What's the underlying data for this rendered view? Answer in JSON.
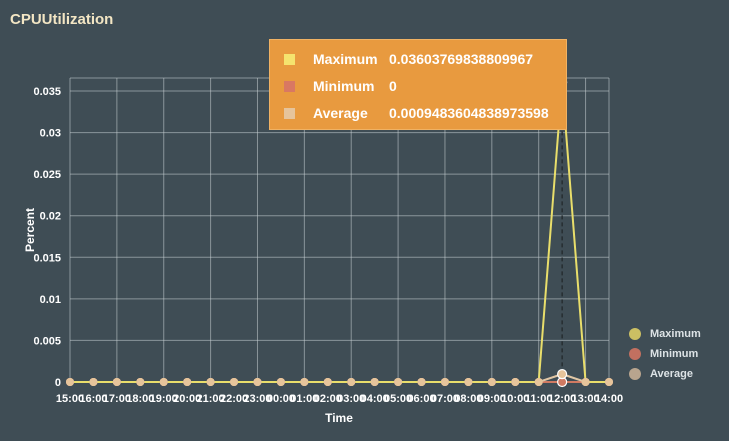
{
  "chart_data": {
    "type": "line",
    "title": "CPUUtilization",
    "xlabel": "Time",
    "ylabel": "Percent",
    "ylim": [
      0,
      0.035
    ],
    "yticks": [
      "0",
      "0.005",
      "0.01",
      "0.015",
      "0.02",
      "0.025",
      "0.03",
      "0.035"
    ],
    "x": [
      "15:00",
      "16:00",
      "17:00",
      "18:00",
      "19:00",
      "20:00",
      "21:00",
      "22:00",
      "23:00",
      "00:00",
      "01:00",
      "02:00",
      "03:00",
      "04:00",
      "05:00",
      "06:00",
      "07:00",
      "08:00",
      "09:00",
      "10:00",
      "11:00",
      "12:00",
      "13:00",
      "14:00"
    ],
    "grid": true,
    "legend_position": "bottom-right",
    "series": [
      {
        "name": "Maximum",
        "color": "#e9de6b",
        "dot_color": "#cbbf63",
        "values": [
          0,
          0,
          0,
          0,
          0,
          0,
          0,
          0,
          0,
          0,
          0,
          0,
          0,
          0,
          0,
          0,
          0,
          0,
          0,
          0,
          0,
          0.03603769838809967,
          0,
          0
        ]
      },
      {
        "name": "Minimum",
        "color": "#d07a62",
        "dot_color": "#c27060",
        "values": [
          0,
          0,
          0,
          0,
          0,
          0,
          0,
          0,
          0,
          0,
          0,
          0,
          0,
          0,
          0,
          0,
          0,
          0,
          0,
          0,
          0,
          0,
          0,
          0
        ]
      },
      {
        "name": "Average",
        "color": "#e1c7a5",
        "dot_color": "#b8a48e",
        "values": [
          0,
          0,
          0,
          0,
          0,
          0,
          0,
          0,
          0,
          0,
          0,
          0,
          0,
          0,
          0,
          0,
          0,
          0,
          0,
          0,
          0,
          0.0009483604838973598,
          0,
          0
        ]
      }
    ],
    "tooltip": {
      "rows": [
        {
          "name": "Maximum",
          "value": "0.03603769838809967",
          "color": "#f5e36e"
        },
        {
          "name": "Minimum",
          "value": "0",
          "color": "#d97862"
        },
        {
          "name": "Average",
          "value": "0.0009483604838973598",
          "color": "#e6c49b"
        }
      ]
    }
  }
}
